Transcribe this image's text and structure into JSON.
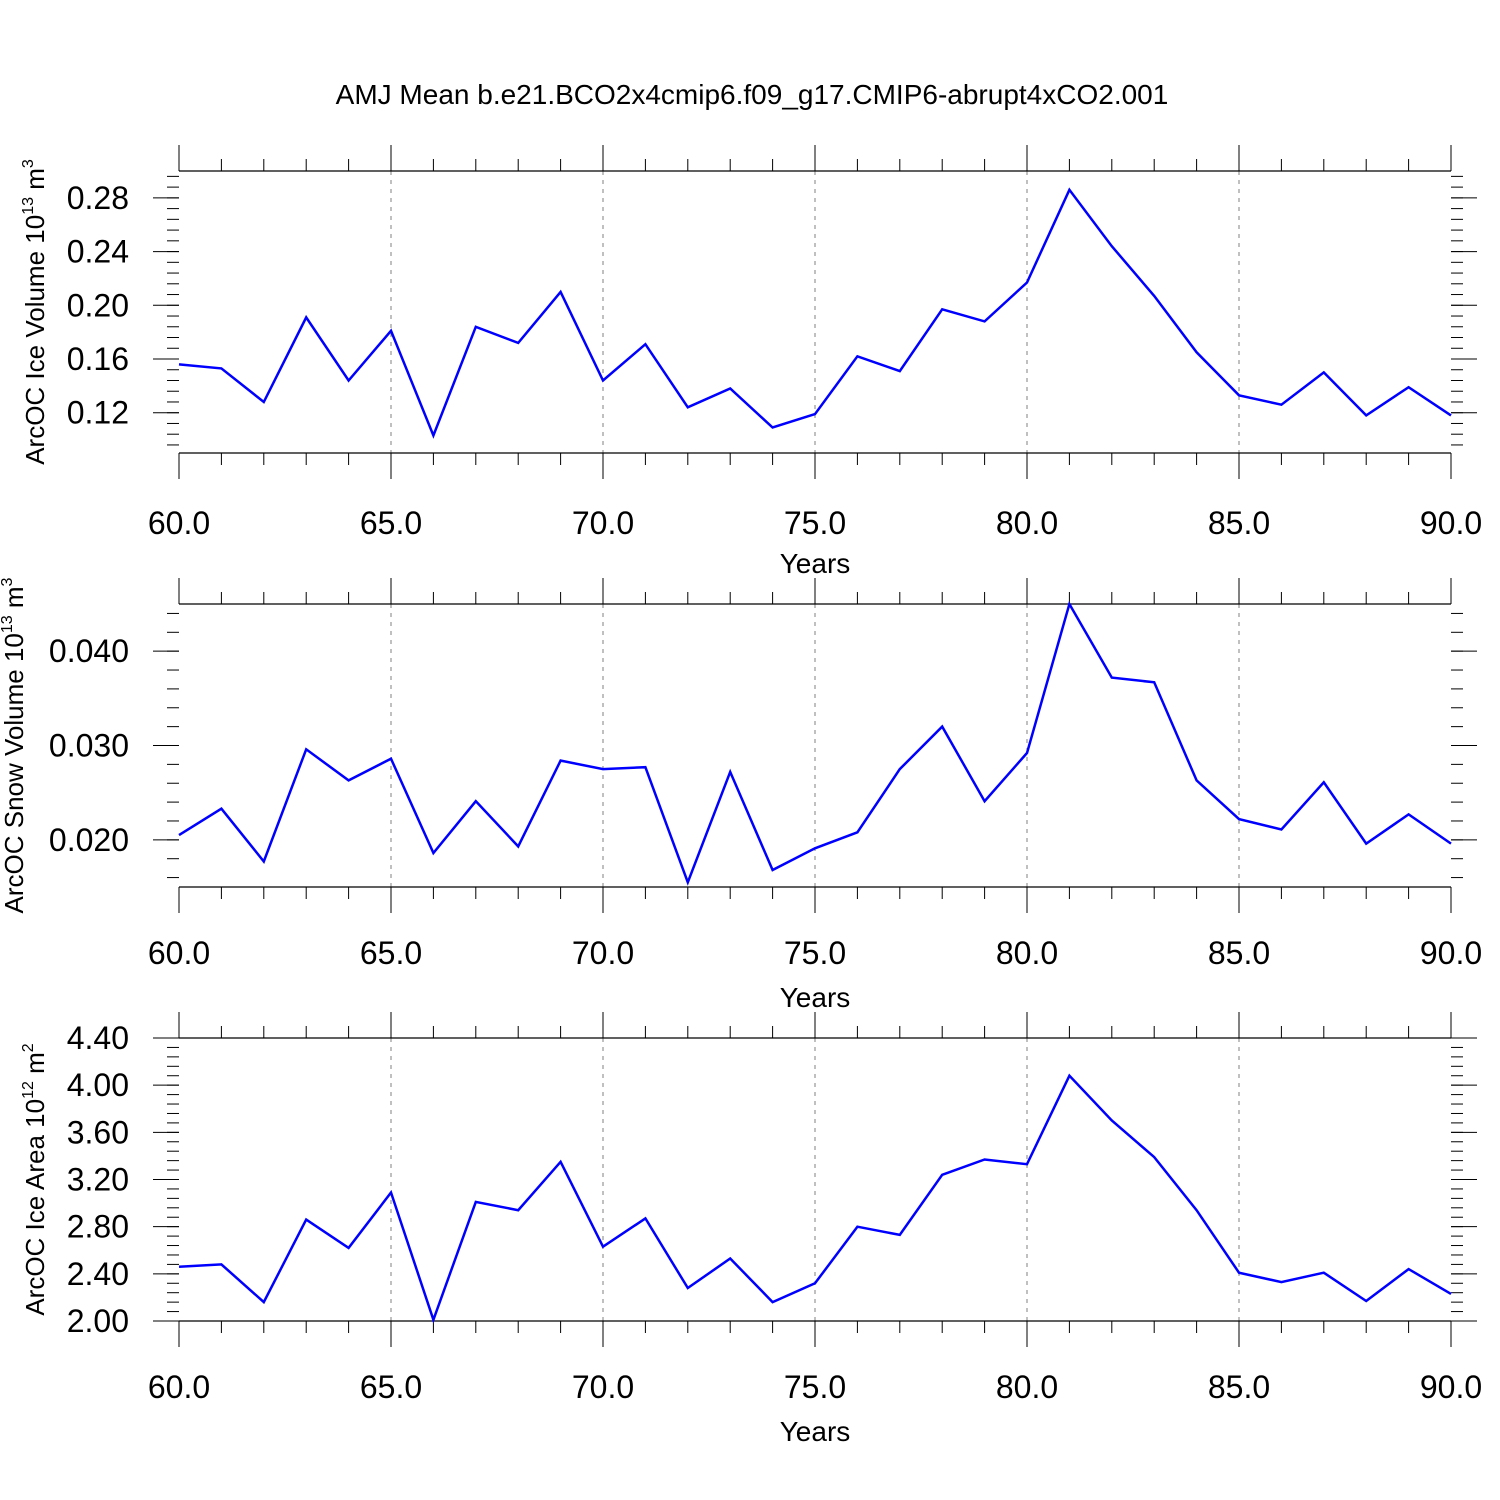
{
  "title": "AMJ Mean b.e21.BCO2x4cmip6.f09_g17.CMIP6-abrupt4xCO2.001",
  "colors": {
    "line": "#0000ff",
    "axis": "#000000",
    "grid": "#808080",
    "background": "#ffffff"
  },
  "chart_data": [
    {
      "type": "line",
      "ylabel": {
        "text": "ArcOC Ice Volume 10",
        "sup": "13",
        "unit": " m",
        "unit_sup": "3"
      },
      "xlabel": "Years",
      "xlim": [
        60,
        90
      ],
      "ylim": [
        0.09,
        0.3
      ],
      "xticks": [
        60,
        65,
        70,
        75,
        80,
        85,
        90
      ],
      "xtick_labels": [
        "60.0",
        "65.0",
        "70.0",
        "75.0",
        "80.0",
        "85.0",
        "90.0"
      ],
      "yticks": [
        0.12,
        0.16,
        0.2,
        0.24,
        0.28
      ],
      "ytick_labels": [
        "0.12",
        "0.16",
        "0.20",
        "0.24",
        "0.28"
      ],
      "y_minor_step": 0.008,
      "grid": "vertical dashed at major x ticks",
      "x": [
        60,
        61,
        62,
        63,
        64,
        65,
        66,
        67,
        68,
        69,
        70,
        71,
        72,
        73,
        74,
        75,
        76,
        77,
        78,
        79,
        80,
        81,
        82,
        83,
        84,
        85,
        86,
        87,
        88,
        89,
        90
      ],
      "series": [
        {
          "values": [
            0.156,
            0.153,
            0.128,
            0.191,
            0.144,
            0.181,
            0.103,
            0.184,
            0.172,
            0.21,
            0.144,
            0.171,
            0.124,
            0.138,
            0.109,
            0.119,
            0.162,
            0.151,
            0.197,
            0.188,
            0.217,
            0.286,
            0.244,
            0.207,
            0.165,
            0.133,
            0.126,
            0.15,
            0.118,
            0.139,
            0.118
          ]
        }
      ]
    },
    {
      "type": "line",
      "ylabel": {
        "text": "ArcOC Snow Volume 10",
        "sup": "13",
        "unit": " m",
        "unit_sup": "3"
      },
      "xlabel": "Years",
      "xlim": [
        60,
        90
      ],
      "ylim": [
        0.015,
        0.045
      ],
      "xticks": [
        60,
        65,
        70,
        75,
        80,
        85,
        90
      ],
      "xtick_labels": [
        "60.0",
        "65.0",
        "70.0",
        "75.0",
        "80.0",
        "85.0",
        "90.0"
      ],
      "yticks": [
        0.02,
        0.03,
        0.04
      ],
      "ytick_labels": [
        "0.020",
        "0.030",
        "0.040"
      ],
      "y_minor_step": 0.002,
      "grid": "vertical dashed at major x ticks",
      "x": [
        60,
        61,
        62,
        63,
        64,
        65,
        66,
        67,
        68,
        69,
        70,
        71,
        72,
        73,
        74,
        75,
        76,
        77,
        78,
        79,
        80,
        81,
        82,
        83,
        84,
        85,
        86,
        87,
        88,
        89,
        90
      ],
      "series": [
        {
          "values": [
            0.0205,
            0.0233,
            0.0177,
            0.0296,
            0.0263,
            0.0286,
            0.0186,
            0.0241,
            0.0193,
            0.0284,
            0.0275,
            0.0277,
            0.0155,
            0.0272,
            0.0168,
            0.0191,
            0.0208,
            0.0275,
            0.032,
            0.0241,
            0.0292,
            0.045,
            0.0372,
            0.0367,
            0.0263,
            0.0222,
            0.0211,
            0.0261,
            0.0196,
            0.0227,
            0.0196
          ]
        }
      ]
    },
    {
      "type": "line",
      "ylabel": {
        "text": "ArcOC Ice Area 10",
        "sup": "12",
        "unit": " m",
        "unit_sup": "2"
      },
      "xlabel": "Years",
      "xlim": [
        60,
        90
      ],
      "ylim": [
        2.0,
        4.4
      ],
      "xticks": [
        60,
        65,
        70,
        75,
        80,
        85,
        90
      ],
      "xtick_labels": [
        "60.0",
        "65.0",
        "70.0",
        "75.0",
        "80.0",
        "85.0",
        "90.0"
      ],
      "yticks": [
        2.0,
        2.4,
        2.8,
        3.2,
        3.6,
        4.0,
        4.4
      ],
      "ytick_labels": [
        "2.00",
        "2.40",
        "2.80",
        "3.20",
        "3.60",
        "4.00",
        "4.40"
      ],
      "y_minor_step": 0.08,
      "grid": "vertical dashed at major x ticks",
      "x": [
        60,
        61,
        62,
        63,
        64,
        65,
        66,
        67,
        68,
        69,
        70,
        71,
        72,
        73,
        74,
        75,
        76,
        77,
        78,
        79,
        80,
        81,
        82,
        83,
        84,
        85,
        86,
        87,
        88,
        89,
        90
      ],
      "series": [
        {
          "values": [
            2.46,
            2.48,
            2.16,
            2.86,
            2.62,
            3.09,
            2.01,
            3.01,
            2.94,
            3.35,
            2.63,
            2.87,
            2.28,
            2.53,
            2.16,
            2.32,
            2.8,
            2.73,
            3.24,
            3.37,
            3.33,
            4.08,
            3.7,
            3.39,
            2.94,
            2.41,
            2.33,
            2.41,
            2.17,
            2.44,
            2.23
          ]
        }
      ]
    }
  ]
}
